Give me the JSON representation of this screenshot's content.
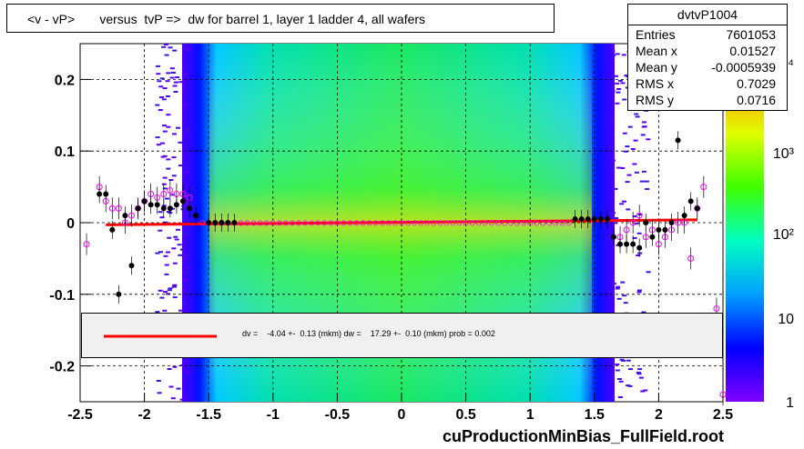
{
  "title": "<v - vP>       versus  tvP =>  dw for barrel 1, layer 1 ladder 4, all wafers",
  "stats": {
    "name": "dvtvP1004",
    "rows": [
      {
        "label": "Entries",
        "value": "7601053"
      },
      {
        "label": "Mean x",
        "value": "0.01527"
      },
      {
        "label": "Mean y",
        "value": "-0.0005939"
      },
      {
        "label": "RMS x",
        "value": "0.7029"
      },
      {
        "label": "RMS y",
        "value": "0.0716"
      }
    ]
  },
  "fit_legend": "dv =    -4.04 +-  0.13 (mkm) dw =    17.29 +-  0.10 (mkm) prob = 0.002",
  "footer": "cuProductionMinBias_FullField.root",
  "colors": {
    "fit_line": "#ff0000",
    "profile_black": "#000000",
    "profile_open": "#ff00ff"
  },
  "chart_data": {
    "type": "heatmap",
    "xlim": [
      -2.5,
      2.5
    ],
    "ylim": [
      -0.25,
      0.25
    ],
    "x_ticks": [
      "-2.5",
      "-2",
      "-1.5",
      "-1",
      "-0.5",
      "0",
      "0.5",
      "1",
      "1.5",
      "2",
      "2.5"
    ],
    "y_ticks": [
      "-0.2",
      "-0.1",
      "0",
      "0.1",
      "0.2"
    ],
    "z_ticks": [
      "1",
      "10",
      "10²",
      "10³",
      "10⁴"
    ],
    "z_scale": "log",
    "grid": true,
    "fit_line": {
      "x": [
        -2.3,
        2.3
      ],
      "y": [
        -0.003,
        0.004
      ]
    },
    "profile_black": {
      "x": [
        -2.35,
        -2.3,
        -2.25,
        -2.2,
        -2.15,
        -2.1,
        -2.05,
        -2.0,
        -1.95,
        -1.9,
        -1.85,
        -1.8,
        -1.75,
        -1.7,
        -1.65,
        -1.6,
        -1.5,
        -1.45,
        -1.4,
        -1.35,
        -1.3,
        1.35,
        1.4,
        1.45,
        1.5,
        1.55,
        1.6,
        1.65,
        1.7,
        1.75,
        1.8,
        1.85,
        1.9,
        1.95,
        2.0,
        2.05,
        2.1,
        2.15,
        2.2,
        2.25,
        2.3
      ],
      "y": [
        0.04,
        0.04,
        -0.01,
        -0.1,
        0.01,
        -0.06,
        0.02,
        0.03,
        0.025,
        0.025,
        0.02,
        0.02,
        0.025,
        0.03,
        0.02,
        0.01,
        0.0,
        0.0,
        0.0,
        0.0,
        0.0,
        0.005,
        0.005,
        0.005,
        0.005,
        0.005,
        0.005,
        -0.02,
        -0.03,
        -0.03,
        -0.03,
        -0.035,
        0.0,
        -0.02,
        -0.01,
        -0.01,
        0.0,
        0.115,
        0.01,
        0.03,
        0.02
      ]
    },
    "profile_open": {
      "x": [
        -2.45,
        -2.35,
        -2.3,
        -2.25,
        -2.2,
        -2.15,
        -2.1,
        -2.05,
        -2.0,
        -1.95,
        -1.9,
        -1.85,
        -1.8,
        -1.75,
        -1.7,
        -1.65,
        1.7,
        1.75,
        1.8,
        1.85,
        1.9,
        1.95,
        2.0,
        2.05,
        2.1,
        2.15,
        2.2,
        2.25,
        2.3,
        2.35,
        2.45,
        2.5
      ],
      "y": [
        -0.03,
        0.05,
        0.03,
        0.02,
        0.02,
        0.0,
        0.01,
        0.02,
        0.03,
        0.04,
        0.035,
        0.04,
        0.045,
        0.04,
        0.04,
        0.035,
        -0.02,
        -0.01,
        0.0,
        0.01,
        -0.02,
        -0.01,
        -0.03,
        -0.02,
        -0.01,
        0.0,
        0.0,
        -0.05,
        0.02,
        0.05,
        -0.12,
        -0.24
      ]
    }
  }
}
